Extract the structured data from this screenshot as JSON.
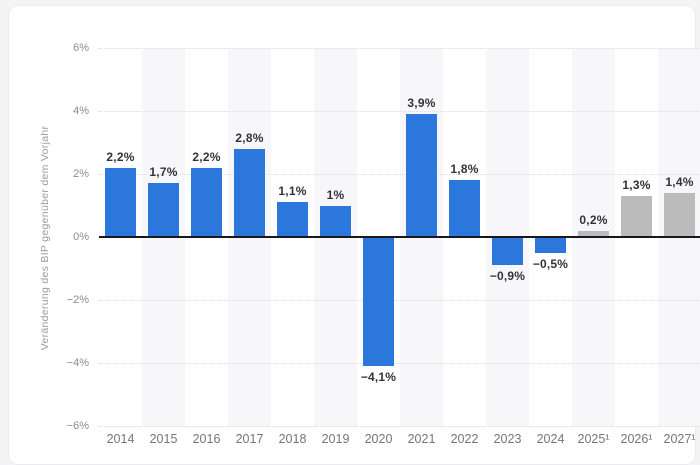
{
  "page": {
    "background": "#f4f4f6",
    "card_background": "#ffffff"
  },
  "chart_data": {
    "type": "bar",
    "title": "",
    "xlabel": "",
    "ylabel": "Veränderung des BIP gegenüber dem Vorjahr",
    "ylim": [
      -6,
      6
    ],
    "grid": true,
    "legend_position": "none",
    "yticks": [
      {
        "value": 6,
        "label": "6%"
      },
      {
        "value": 4,
        "label": "4%"
      },
      {
        "value": 2,
        "label": "2%"
      },
      {
        "value": 0,
        "label": "0%"
      },
      {
        "value": -2,
        "label": "−2%"
      },
      {
        "value": -4,
        "label": "−4%"
      },
      {
        "value": -6,
        "label": "−6%"
      }
    ],
    "categories": [
      "2014",
      "2015",
      "2016",
      "2017",
      "2018",
      "2019",
      "2020",
      "2021",
      "2022",
      "2023",
      "2024",
      "2025¹",
      "2026¹",
      "2027¹"
    ],
    "values": [
      2.2,
      1.7,
      2.2,
      2.8,
      1.1,
      1,
      -4.1,
      3.9,
      1.8,
      -0.9,
      -0.5,
      0.2,
      1.3,
      1.4
    ],
    "value_labels": [
      "2,2%",
      "1,7%",
      "2,2%",
      "2,8%",
      "1,1%",
      "1%",
      "−4,1%",
      "3,9%",
      "1,8%",
      "−0,9%",
      "−0,5%",
      "0,2%",
      "1,3%",
      "1,4%"
    ],
    "forecast": [
      false,
      false,
      false,
      false,
      false,
      false,
      false,
      false,
      false,
      false,
      false,
      true,
      true,
      true
    ],
    "colors": {
      "bar": "#2b77dc",
      "forecast_bar": "#bbbbbb",
      "gridline": "#dcdcdc",
      "zero_line": "#17171c",
      "column_band": "#f7f7f9",
      "value_label": "#32323c",
      "y_tick_label": "#8c8c8c",
      "x_tick_label": "#75757a",
      "axis_title": "#9b9b9b"
    }
  }
}
